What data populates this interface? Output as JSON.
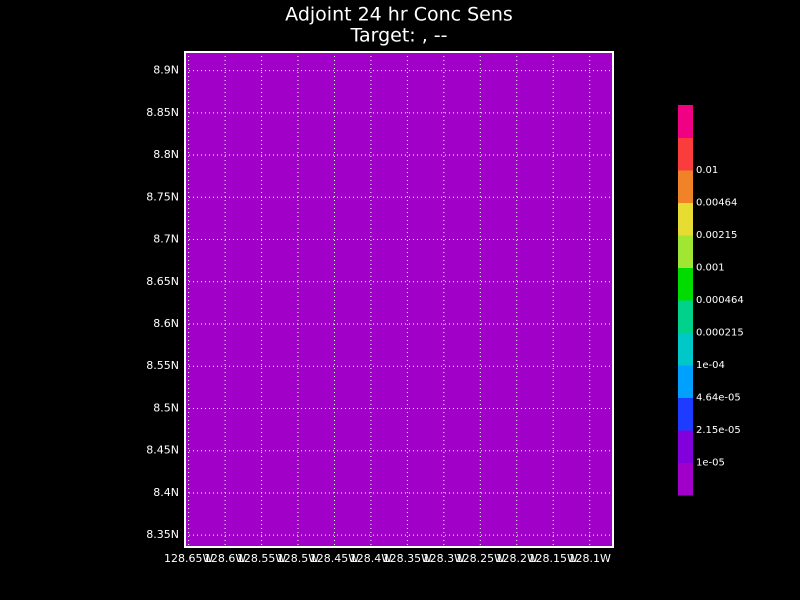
{
  "chart_data": {
    "type": "contour-map",
    "title": "Adjoint 24 hr Conc Sens",
    "subtitle": "Target: , --",
    "fill_color": "#a000c8",
    "xlim": [
      -128.655,
      -128.068
    ],
    "ylim": [
      8.336,
      8.922
    ],
    "xticks": [
      {
        "value": -128.65,
        "label": "128.65W"
      },
      {
        "value": -128.6,
        "label": "128.6W"
      },
      {
        "value": -128.55,
        "label": "128.55W"
      },
      {
        "value": -128.5,
        "label": "128.5W"
      },
      {
        "value": -128.45,
        "label": "128.45W"
      },
      {
        "value": -128.4,
        "label": "128.4W"
      },
      {
        "value": -128.35,
        "label": "128.35W"
      },
      {
        "value": -128.3,
        "label": "128.3W"
      },
      {
        "value": -128.25,
        "label": "128.25W"
      },
      {
        "value": -128.2,
        "label": "128.2W"
      },
      {
        "value": -128.15,
        "label": "128.15W"
      },
      {
        "value": -128.1,
        "label": "128.1W"
      }
    ],
    "yticks": [
      {
        "value": 8.35,
        "label": "8.35N"
      },
      {
        "value": 8.4,
        "label": "8.4N"
      },
      {
        "value": 8.45,
        "label": "8.45N"
      },
      {
        "value": 8.5,
        "label": "8.5N"
      },
      {
        "value": 8.55,
        "label": "8.55N"
      },
      {
        "value": 8.6,
        "label": "8.6N"
      },
      {
        "value": 8.65,
        "label": "8.65N"
      },
      {
        "value": 8.7,
        "label": "8.7N"
      },
      {
        "value": 8.75,
        "label": "8.75N"
      },
      {
        "value": 8.8,
        "label": "8.8N"
      },
      {
        "value": 8.85,
        "label": "8.85N"
      },
      {
        "value": 8.9,
        "label": "8.9N"
      }
    ],
    "grid": true,
    "colorbar": {
      "levels": [
        {
          "value": 1e-05,
          "label": "1e-05"
        },
        {
          "value": 2.15e-05,
          "label": "2.15e-05"
        },
        {
          "value": 4.64e-05,
          "label": "4.64e-05"
        },
        {
          "value": 0.0001,
          "label": "1e-04"
        },
        0.000215,
        0.000464,
        0.001,
        0.00215,
        0.00464,
        0.01
      ],
      "colors": [
        "#a000c8",
        "#8200dc",
        "#1e3cff",
        "#00a0ff",
        "#00c8c8",
        "#00d28c",
        "#00dc00",
        "#a0e632",
        "#e6dc32",
        "#f08228",
        "#fa3c3c",
        "#f00082"
      ]
    }
  }
}
